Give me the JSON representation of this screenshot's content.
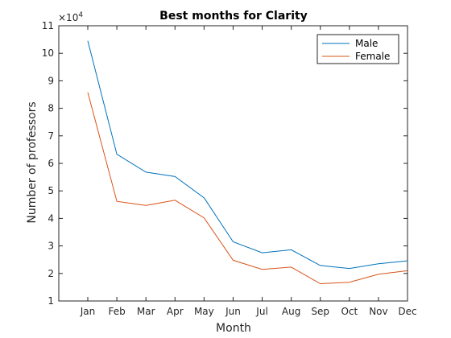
{
  "chart_data": {
    "type": "line",
    "title": "Best months for Clarity",
    "xlabel": "Month",
    "ylabel": "Number of professors",
    "y_multiplier_label": "×10",
    "y_multiplier_exp": "4",
    "categories": [
      "Jan",
      "Feb",
      "Mar",
      "Apr",
      "May",
      "Jun",
      "Jul",
      "Aug",
      "Sep",
      "Oct",
      "Nov",
      "Dec"
    ],
    "ylim": [
      1,
      11
    ],
    "ytick_labels": [
      "1",
      "2",
      "3",
      "4",
      "5",
      "6",
      "7",
      "8",
      "9",
      "10",
      "11"
    ],
    "series": [
      {
        "name": "Male",
        "color": "#0072bd",
        "values": [
          10.45,
          6.33,
          5.68,
          5.52,
          4.75,
          3.15,
          2.75,
          2.86,
          2.29,
          2.18,
          2.35,
          2.46
        ]
      },
      {
        "name": "Female",
        "color": "#d95319",
        "values": [
          8.58,
          4.62,
          4.47,
          4.66,
          4.02,
          2.48,
          2.15,
          2.23,
          1.63,
          1.68,
          1.97,
          2.1
        ]
      }
    ],
    "legend_position": "top-right",
    "grid": false
  }
}
